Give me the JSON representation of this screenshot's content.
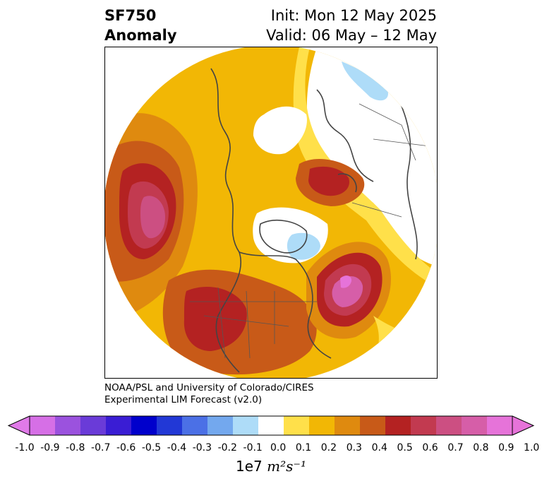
{
  "title": {
    "variable": "SF750",
    "kind": "Anomaly",
    "init": "Init: Mon 12 May 2025",
    "valid": "Valid: 06 May – 12 May"
  },
  "credit": {
    "line1": "NOAA/PSL and University of Colorado/CIRES",
    "line2": "Experimental LIM Forecast (v2.0)"
  },
  "colorbar": {
    "ticks": [
      "-1.0",
      "-0.9",
      "-0.8",
      "-0.7",
      "-0.6",
      "-0.5",
      "-0.4",
      "-0.3",
      "-0.2",
      "-0.1",
      "0.0",
      "0.1",
      "0.2",
      "0.3",
      "0.4",
      "0.5",
      "0.6",
      "0.7",
      "0.8",
      "0.9",
      "1.0"
    ],
    "colors": [
      "#d66fe6",
      "#9b52de",
      "#6a3bd8",
      "#3a1dd4",
      "#0000cc",
      "#2238d6",
      "#4b70e6",
      "#73a8ee",
      "#aedcf8",
      "#ffffff",
      "#ffe04a",
      "#f2b705",
      "#df8a0f",
      "#c85a18",
      "#b42222",
      "#c23a50",
      "#cc4f82",
      "#d65ea8",
      "#e673d9"
    ],
    "under_color": "#e07ae8",
    "over_color": "#e673d9",
    "units_prefix": "1e7",
    "units_expr": "m²s⁻¹"
  }
}
